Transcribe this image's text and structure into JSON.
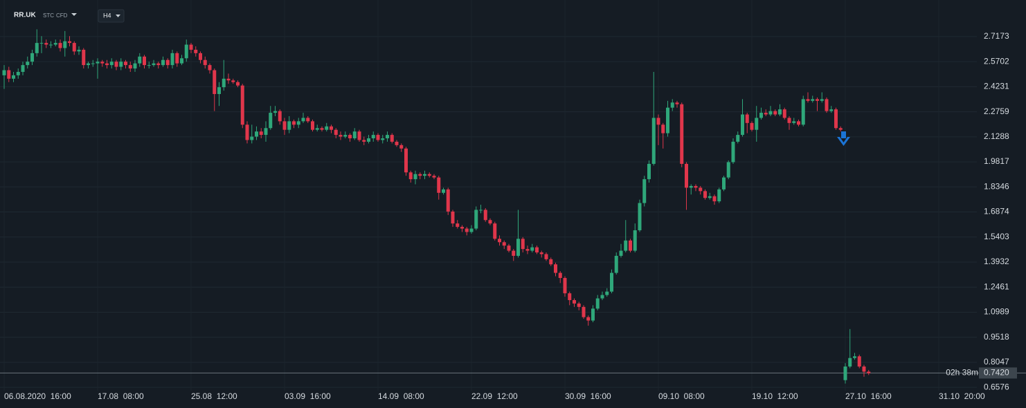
{
  "header": {
    "symbol": "RR.UK",
    "tags": [
      "STC",
      "CFD"
    ],
    "timeframe": "H4"
  },
  "chart_data": {
    "type": "candlestick",
    "up_color": "#2fa77a",
    "down_color": "#e0364b",
    "grid": true,
    "xlim": [
      -0.15,
      208.15
    ],
    "xticks": [
      {
        "value": 0,
        "label": "06.08.2020  16:00"
      },
      {
        "value": 20,
        "label": "17.08  08:00"
      },
      {
        "value": 40,
        "label": "25.08  12:00"
      },
      {
        "value": 60,
        "label": "03.09  16:00"
      },
      {
        "value": 80,
        "label": "14.09  08:00"
      },
      {
        "value": 100,
        "label": "22.09  12:00"
      },
      {
        "value": 120,
        "label": "30.09  16:00"
      },
      {
        "value": 140,
        "label": "09.10  08:00"
      },
      {
        "value": 160,
        "label": "19.10  12:00"
      },
      {
        "value": 180,
        "label": "27.10  16:00"
      },
      {
        "value": 200,
        "label": "31.10  20:00"
      }
    ],
    "ylim": [
      0.638,
      2.79
    ],
    "yticks": [
      2.7173,
      2.5702,
      2.4231,
      2.2759,
      2.1288,
      1.9817,
      1.8346,
      1.6874,
      1.5403,
      1.3932,
      1.2461,
      1.0989,
      0.9518,
      0.8047,
      0.6576
    ],
    "last_price": {
      "value": 0.742,
      "label": "0.7420"
    },
    "countdown": "02h 38m",
    "open": [
      2.49,
      2.52,
      2.47,
      2.49,
      2.51,
      2.55,
      2.57,
      2.62,
      2.68,
      2.68,
      2.67,
      2.67,
      2.68,
      2.65,
      2.69,
      2.68,
      2.63,
      2.64,
      2.55,
      2.56,
      2.56,
      2.57,
      2.56,
      2.55,
      2.57,
      2.54,
      2.57,
      2.55,
      2.53,
      2.56,
      2.6,
      2.55,
      2.55,
      2.56,
      2.55,
      2.58,
      2.55,
      2.62,
      2.56,
      2.59,
      2.67,
      2.64,
      2.62,
      2.58,
      2.55,
      2.52,
      2.38,
      2.42,
      2.47,
      2.46,
      2.45,
      2.43,
      2.2,
      2.11,
      2.13,
      2.16,
      2.14,
      2.18,
      2.27,
      2.28,
      2.22,
      2.17,
      2.22,
      2.2,
      2.22,
      2.24,
      2.22,
      2.17,
      2.18,
      2.17,
      2.19,
      2.17,
      2.14,
      2.13,
      2.14,
      2.12,
      2.16,
      2.11,
      2.1,
      2.12,
      2.14,
      2.11,
      2.12,
      2.14,
      2.1,
      2.08,
      2.06,
      1.92,
      1.88,
      1.91,
      1.9,
      1.91,
      1.9,
      1.89,
      1.8,
      1.82,
      1.69,
      1.62,
      1.6,
      1.59,
      1.57,
      1.59,
      1.7,
      1.7,
      1.64,
      1.62,
      1.53,
      1.51,
      1.49,
      1.46,
      1.43,
      1.53,
      1.47,
      1.46,
      1.48,
      1.45,
      1.44,
      1.41,
      1.38,
      1.33,
      1.3,
      1.21,
      1.17,
      1.15,
      1.13,
      1.07,
      1.05,
      1.12,
      1.18,
      1.2,
      1.22,
      1.33,
      1.43,
      1.46,
      1.52,
      1.46,
      1.58,
      1.74,
      1.88,
      1.97,
      2.24,
      2.2,
      2.15,
      2.3,
      2.33,
      2.32,
      1.97,
      1.83,
      1.84,
      1.83,
      1.81,
      1.77,
      1.78,
      1.75,
      1.82,
      1.89,
      1.98,
      2.1,
      2.14,
      2.26,
      2.21,
      2.17,
      2.24,
      2.27,
      2.26,
      2.28,
      2.26,
      2.29,
      2.24,
      2.21,
      2.22,
      2.2,
      2.35,
      2.34,
      2.35,
      2.34,
      2.35,
      2.28,
      2.29,
      2.18,
      0.7,
      0.78,
      0.83,
      0.84,
      0.78,
      0.75
    ],
    "high": [
      2.55,
      2.54,
      2.51,
      2.53,
      2.57,
      2.6,
      2.64,
      2.76,
      2.72,
      2.7,
      2.69,
      2.7,
      2.7,
      2.75,
      2.72,
      2.69,
      2.66,
      2.65,
      2.57,
      2.58,
      2.59,
      2.58,
      2.58,
      2.59,
      2.58,
      2.59,
      2.58,
      2.57,
      2.58,
      2.62,
      2.61,
      2.57,
      2.58,
      2.57,
      2.6,
      2.59,
      2.64,
      2.63,
      2.61,
      2.7,
      2.68,
      2.66,
      2.63,
      2.6,
      2.56,
      2.53,
      2.45,
      2.58,
      2.5,
      2.47,
      2.46,
      2.44,
      2.22,
      2.2,
      2.19,
      2.18,
      2.22,
      2.31,
      2.31,
      2.29,
      2.24,
      2.25,
      2.23,
      2.24,
      2.27,
      2.25,
      2.23,
      2.2,
      2.19,
      2.21,
      2.2,
      2.18,
      2.16,
      2.16,
      2.15,
      2.18,
      2.17,
      2.13,
      2.14,
      2.16,
      2.15,
      2.14,
      2.16,
      2.15,
      2.11,
      2.09,
      2.07,
      1.93,
      1.93,
      1.92,
      1.93,
      1.92,
      1.91,
      1.9,
      1.83,
      1.83,
      1.7,
      1.64,
      1.61,
      1.6,
      1.61,
      1.72,
      1.73,
      1.71,
      1.65,
      1.63,
      1.55,
      1.52,
      1.5,
      1.47,
      1.7,
      1.54,
      1.49,
      1.5,
      1.49,
      1.46,
      1.45,
      1.42,
      1.39,
      1.34,
      1.31,
      1.22,
      1.18,
      1.16,
      1.14,
      1.08,
      1.14,
      1.2,
      1.22,
      1.24,
      1.35,
      1.45,
      1.5,
      1.64,
      1.53,
      1.62,
      1.76,
      1.9,
      1.99,
      2.51,
      2.26,
      2.21,
      2.34,
      2.35,
      2.34,
      2.33,
      1.98,
      1.85,
      1.85,
      1.84,
      1.82,
      1.8,
      1.79,
      1.83,
      1.9,
      1.99,
      2.12,
      2.16,
      2.35,
      2.27,
      2.22,
      2.31,
      2.3,
      2.29,
      2.31,
      2.29,
      2.32,
      2.3,
      2.25,
      2.24,
      2.23,
      2.37,
      2.39,
      2.37,
      2.36,
      2.39,
      2.36,
      2.31,
      2.3,
      2.19,
      0.8,
      1.0,
      0.86,
      0.85,
      0.79,
      0.76
    ],
    "low": [
      2.41,
      2.45,
      2.45,
      2.47,
      2.49,
      2.53,
      2.55,
      2.6,
      2.62,
      2.65,
      2.65,
      2.66,
      2.63,
      2.6,
      2.66,
      2.61,
      2.61,
      2.53,
      2.53,
      2.54,
      2.47,
      2.54,
      2.53,
      2.53,
      2.52,
      2.52,
      2.53,
      2.51,
      2.51,
      2.54,
      2.53,
      2.53,
      2.54,
      2.53,
      2.54,
      2.53,
      2.53,
      2.54,
      2.55,
      2.57,
      2.62,
      2.6,
      2.56,
      2.53,
      2.5,
      2.28,
      2.31,
      2.4,
      2.44,
      2.44,
      2.42,
      2.18,
      2.09,
      2.09,
      2.11,
      2.12,
      2.1,
      2.17,
      2.25,
      2.2,
      2.14,
      2.15,
      2.18,
      2.18,
      2.21,
      2.21,
      2.16,
      2.16,
      2.16,
      2.16,
      2.15,
      2.12,
      2.11,
      2.12,
      2.1,
      2.11,
      2.1,
      2.08,
      2.09,
      2.1,
      2.1,
      2.09,
      2.1,
      2.09,
      2.07,
      2.04,
      1.9,
      1.86,
      1.85,
      1.88,
      1.88,
      1.89,
      1.88,
      1.76,
      1.79,
      1.67,
      1.6,
      1.59,
      1.57,
      1.55,
      1.56,
      1.58,
      1.68,
      1.63,
      1.61,
      1.52,
      1.49,
      1.47,
      1.45,
      1.4,
      1.42,
      1.45,
      1.44,
      1.45,
      1.44,
      1.42,
      1.4,
      1.37,
      1.31,
      1.27,
      1.19,
      1.14,
      1.13,
      1.11,
      1.06,
      1.02,
      1.04,
      1.11,
      1.17,
      1.19,
      1.21,
      1.32,
      1.42,
      1.45,
      1.45,
      1.45,
      1.57,
      1.72,
      1.86,
      1.96,
      2.08,
      2.06,
      2.13,
      2.28,
      2.3,
      1.95,
      1.7,
      1.79,
      1.81,
      1.79,
      1.76,
      1.76,
      1.73,
      1.74,
      1.81,
      1.88,
      1.97,
      2.09,
      2.13,
      2.15,
      2.16,
      2.1,
      2.23,
      2.25,
      2.25,
      2.25,
      2.25,
      2.23,
      2.17,
      2.2,
      2.19,
      2.19,
      2.33,
      2.33,
      2.28,
      2.33,
      2.27,
      2.27,
      2.17,
      2.16,
      0.68,
      0.77,
      0.82,
      0.77,
      0.72,
      0.73
    ],
    "close": [
      2.52,
      2.47,
      2.49,
      2.51,
      2.55,
      2.57,
      2.62,
      2.68,
      2.68,
      2.67,
      2.67,
      2.68,
      2.65,
      2.69,
      2.68,
      2.63,
      2.64,
      2.55,
      2.56,
      2.56,
      2.57,
      2.56,
      2.55,
      2.57,
      2.54,
      2.57,
      2.55,
      2.53,
      2.56,
      2.6,
      2.55,
      2.55,
      2.56,
      2.55,
      2.58,
      2.55,
      2.62,
      2.56,
      2.59,
      2.67,
      2.64,
      2.62,
      2.58,
      2.55,
      2.52,
      2.38,
      2.42,
      2.47,
      2.46,
      2.45,
      2.43,
      2.2,
      2.11,
      2.13,
      2.16,
      2.14,
      2.18,
      2.27,
      2.28,
      2.22,
      2.17,
      2.22,
      2.2,
      2.22,
      2.24,
      2.22,
      2.17,
      2.18,
      2.17,
      2.19,
      2.17,
      2.14,
      2.13,
      2.14,
      2.12,
      2.16,
      2.11,
      2.1,
      2.12,
      2.14,
      2.11,
      2.12,
      2.14,
      2.1,
      2.08,
      2.06,
      1.92,
      1.88,
      1.91,
      1.9,
      1.91,
      1.9,
      1.89,
      1.8,
      1.82,
      1.69,
      1.62,
      1.6,
      1.59,
      1.57,
      1.59,
      1.7,
      1.7,
      1.64,
      1.62,
      1.53,
      1.51,
      1.49,
      1.46,
      1.43,
      1.53,
      1.47,
      1.46,
      1.48,
      1.45,
      1.44,
      1.41,
      1.38,
      1.33,
      1.3,
      1.21,
      1.17,
      1.15,
      1.13,
      1.07,
      1.05,
      1.12,
      1.18,
      1.2,
      1.22,
      1.33,
      1.43,
      1.46,
      1.52,
      1.46,
      1.58,
      1.74,
      1.88,
      1.97,
      2.24,
      2.2,
      2.15,
      2.3,
      2.33,
      2.32,
      1.97,
      1.83,
      1.84,
      1.83,
      1.81,
      1.77,
      1.78,
      1.75,
      1.82,
      1.89,
      1.98,
      2.1,
      2.14,
      2.26,
      2.21,
      2.17,
      2.24,
      2.27,
      2.26,
      2.28,
      2.26,
      2.29,
      2.24,
      2.21,
      2.22,
      2.2,
      2.35,
      2.34,
      2.35,
      2.34,
      2.35,
      2.28,
      2.29,
      2.18,
      2.17,
      0.78,
      0.83,
      0.84,
      0.78,
      0.75,
      0.74
    ]
  }
}
